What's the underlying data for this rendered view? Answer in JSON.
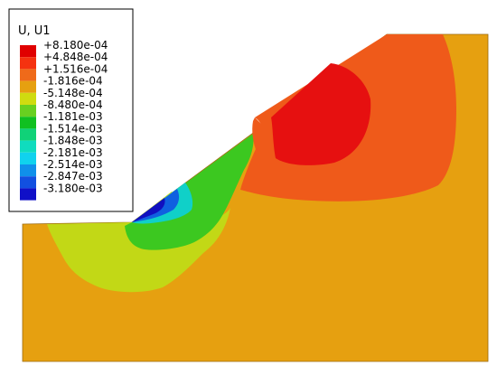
{
  "legend": {
    "title": "U, U1",
    "entries": [
      {
        "label": "+8.180e-04",
        "color": "#e00000"
      },
      {
        "label": "+4.848e-04",
        "color": "#f53210"
      },
      {
        "label": "+1.516e-04",
        "color": "#ef6a1a"
      },
      {
        "label": "-1.816e-04",
        "color": "#e6a010"
      },
      {
        "label": "-5.148e-04",
        "color": "#cfdc10"
      },
      {
        "label": "-8.480e-04",
        "color": "#68d020"
      },
      {
        "label": "-1.181e-03",
        "color": "#10c020"
      },
      {
        "label": "-1.514e-03",
        "color": "#10d278"
      },
      {
        "label": "-1.848e-03",
        "color": "#10dcbe"
      },
      {
        "label": "-2.181e-03",
        "color": "#10d2ee"
      },
      {
        "label": "-2.514e-03",
        "color": "#1090ea"
      },
      {
        "label": "-2.847e-03",
        "color": "#1250e0"
      },
      {
        "label": "-3.180e-03",
        "color": "#1010c8"
      }
    ]
  },
  "colors": {
    "background": "#ffffff",
    "domain_base": "#e6a010",
    "positive_band": "#ef5a1a",
    "max_band": "#e61010",
    "negative_band": "#c2d816",
    "green_band": "#3cc820",
    "cyan_band": "#10d0c8",
    "blue_band": "#1060e0",
    "deep_blue_band": "#1010c0"
  }
}
